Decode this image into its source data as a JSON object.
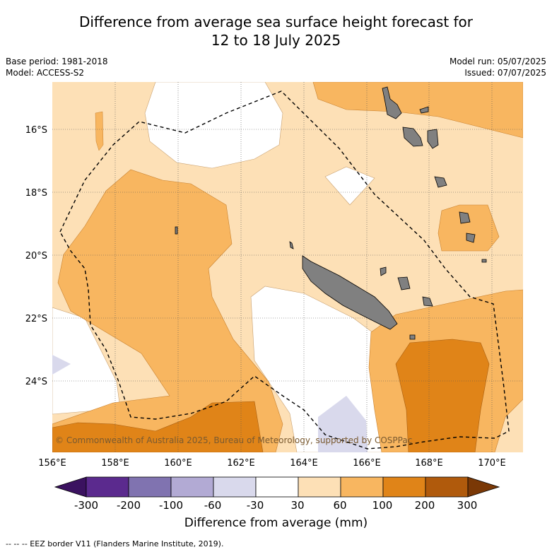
{
  "title_line1": "Difference from average sea surface height forecast for",
  "title_line2": "12 to 18 July 2025",
  "base_period": "Base period: 1981-2018",
  "model": "Model: ACCESS-S2",
  "model_run": "Model run: 05/07/2025",
  "issued": "Issued: 07/07/2025",
  "lon_ticks": [
    "156°E",
    "158°E",
    "160°E",
    "162°E",
    "164°E",
    "166°E",
    "168°E",
    "170°E"
  ],
  "lat_ticks": [
    "16°S",
    "18°S",
    "20°S",
    "22°S",
    "24°S"
  ],
  "copyright": "© Commonwealth of Australia 2025, Bureau of Meteorology, supported by COSPPac",
  "colorbar": {
    "tick_labels": [
      "-300",
      "-200",
      "-100",
      "-60",
      "-30",
      "30",
      "60",
      "100",
      "200",
      "300"
    ],
    "colors": [
      "#3b1260",
      "#5b2a8e",
      "#8073b0",
      "#b2aad4",
      "#d9d9ec",
      "#ffffff",
      "#fde0b6",
      "#f8b660",
      "#e08418",
      "#b05a0c",
      "#7a3806"
    ],
    "label": "Difference from average (mm)"
  },
  "eez_note": "--  --  -- EEZ border V11 (Flanders Marine Institute, 2019)."
}
